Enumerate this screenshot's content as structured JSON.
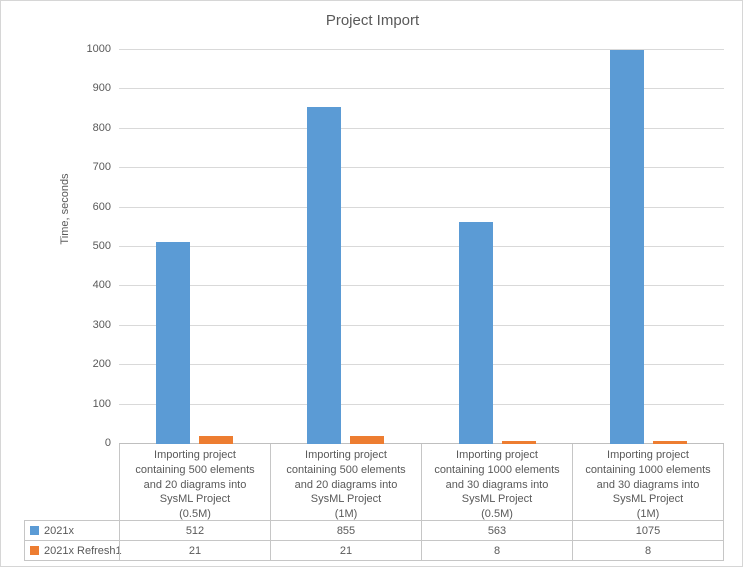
{
  "chart_data": {
    "type": "bar",
    "title": "Project Import",
    "xlabel": "",
    "ylabel": "Time, seconds",
    "ylim": [
      0,
      1000
    ],
    "ytick_step": 100,
    "grid": true,
    "legend_position": "bottom-table-left",
    "categories": [
      "Importing project containing 500 elements and 20 diagrams into SysML Project (0.5M)",
      "Importing project containing 500 elements and 20 diagrams into SysML Project (1M)",
      "Importing project containing 1000 elements and 30 diagrams into SysML Project (0.5M)",
      "Importing project containing 1000 elements and 30 diagrams into SysML Project (1M)"
    ],
    "categories_multiline": [
      "Importing project\ncontaining 500 elements\nand 20 diagrams into\nSysML Project\n(0.5M)",
      "Importing project\ncontaining 500 elements\nand 20 diagrams into\nSysML Project\n(1M)",
      "Importing project\ncontaining 1000 elements\nand 30 diagrams into\nSysML Project\n(0.5M)",
      "Importing project\ncontaining 1000 elements\nand 30 diagrams into\nSysML Project\n(1M)"
    ],
    "series": [
      {
        "name": "2021x",
        "color": "#5B9BD5",
        "values": [
          512,
          855,
          563,
          1075
        ]
      },
      {
        "name": "2021x Refresh1",
        "color": "#ED7D31",
        "values": [
          21,
          21,
          8,
          8
        ]
      }
    ]
  },
  "colors": {
    "text": "#595959",
    "gridline": "#d9d9d9",
    "axis_line": "#bfbfbf",
    "table_border": "#c6c6c6",
    "background": "#ffffff"
  }
}
